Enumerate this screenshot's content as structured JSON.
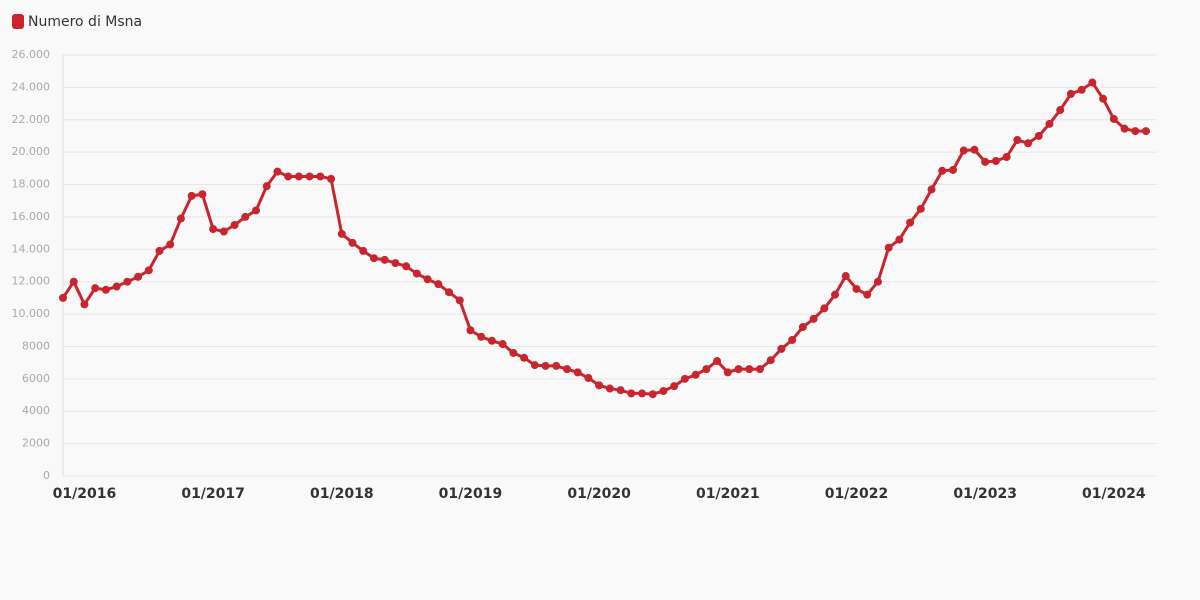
{
  "chart_data": {
    "type": "line",
    "series": [
      {
        "name": "Numero di Msna",
        "color": "#c9252f",
        "values": [
          11000,
          12000,
          10600,
          11600,
          11500,
          11700,
          12000,
          12300,
          12700,
          13900,
          14300,
          15900,
          17300,
          17400,
          15250,
          15100,
          15500,
          16000,
          16400,
          17900,
          18800,
          18500,
          18500,
          18500,
          18500,
          18350,
          14950,
          14400,
          13900,
          13450,
          13350,
          13150,
          12950,
          12500,
          12150,
          11850,
          11350,
          10850,
          9000,
          8600,
          8350,
          8150,
          7600,
          7300,
          6850,
          6800,
          6800,
          6600,
          6400,
          6050,
          5600,
          5400,
          5300,
          5100,
          5100,
          5050,
          5250,
          5550,
          6000,
          6250,
          6600,
          7100,
          6400,
          6600,
          6600,
          6600,
          7150,
          7850,
          8400,
          9200,
          9700,
          10350,
          11200,
          12350,
          11550,
          11200,
          12000,
          14100,
          14600,
          15650,
          16500,
          17700,
          18850,
          18900,
          20100,
          20150,
          19400,
          19450,
          19700,
          20750,
          20550,
          21000,
          21750,
          22600,
          23600,
          23850,
          24300,
          23300,
          22050,
          21450,
          21300,
          21300
        ]
      }
    ],
    "categories": [
      null,
      null,
      "01/2016",
      null,
      null,
      null,
      null,
      null,
      null,
      null,
      null,
      null,
      null,
      null,
      "01/2017",
      null,
      null,
      null,
      null,
      null,
      null,
      null,
      null,
      null,
      null,
      null,
      "01/2018",
      null,
      null,
      null,
      null,
      null,
      null,
      null,
      null,
      null,
      null,
      null,
      "01/2019",
      null,
      null,
      null,
      null,
      null,
      null,
      null,
      null,
      null,
      null,
      null,
      "01/2020",
      null,
      null,
      null,
      null,
      null,
      null,
      null,
      null,
      null,
      null,
      null,
      "01/2021",
      null,
      null,
      null,
      null,
      null,
      null,
      null,
      null,
      null,
      null,
      null,
      "01/2022",
      null,
      null,
      null,
      null,
      null,
      null,
      null,
      null,
      null,
      null,
      null,
      "01/2023",
      null,
      null,
      null,
      null,
      null,
      null,
      null,
      null,
      null,
      null,
      null,
      "01/2024",
      null,
      null,
      null
    ],
    "ylim": [
      0,
      26000
    ],
    "yticks": [
      0,
      2000,
      4000,
      6000,
      8000,
      {
        "value": 10000,
        "label": "10.000"
      },
      {
        "value": 12000,
        "label": "12.000"
      },
      {
        "value": 14000,
        "label": "14.000"
      },
      {
        "value": 16000,
        "label": "16.000"
      },
      {
        "value": 18000,
        "label": "18.000"
      },
      {
        "value": 20000,
        "label": "20.000"
      },
      {
        "value": 22000,
        "label": "22.000"
      },
      {
        "value": 24000,
        "label": "24.000"
      },
      {
        "value": 26000,
        "label": "26.000"
      }
    ],
    "grid": true,
    "legend": "top-left"
  }
}
